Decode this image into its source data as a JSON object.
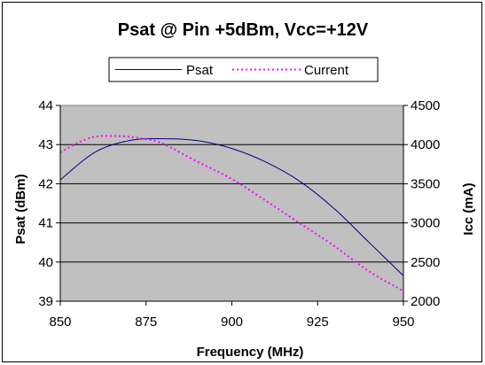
{
  "chart_data": {
    "type": "line",
    "title": "Psat @ Pin +5dBm, Vcc=+12V",
    "xlabel": "Frequency  (MHz)",
    "ylabel": "Psat (dBm)",
    "y2label": "Icc (mA)",
    "xlim": [
      850,
      950
    ],
    "ylim": [
      39,
      44
    ],
    "y2lim": [
      2000,
      4500
    ],
    "x_ticks": [
      "850",
      "875",
      "900",
      "925",
      "950"
    ],
    "y_ticks": [
      "39",
      "40",
      "41",
      "42",
      "43",
      "44"
    ],
    "y2_ticks": [
      "2000",
      "2500",
      "3000",
      "3500",
      "4000",
      "4500"
    ],
    "grid": "horizontal",
    "legend_position": "top",
    "plot_background": "#c0c0c0",
    "series": [
      {
        "name": "Psat",
        "axis": "left",
        "color": "#000080",
        "style": "solid",
        "x": [
          850,
          860,
          870,
          880,
          890,
          900,
          910,
          920,
          930,
          940,
          950
        ],
        "y": [
          42.1,
          42.8,
          43.1,
          43.15,
          43.1,
          42.9,
          42.55,
          42.05,
          41.35,
          40.5,
          39.65
        ]
      },
      {
        "name": "Current",
        "axis": "right",
        "color": "#ff00ff",
        "style": "dotted",
        "x": [
          850,
          855,
          860,
          865,
          870,
          875,
          880,
          890,
          900,
          910,
          920,
          930,
          940,
          950
        ],
        "y": [
          3900,
          4020,
          4100,
          4110,
          4100,
          4070,
          4010,
          3780,
          3560,
          3280,
          2990,
          2700,
          2380,
          2130
        ]
      }
    ]
  }
}
